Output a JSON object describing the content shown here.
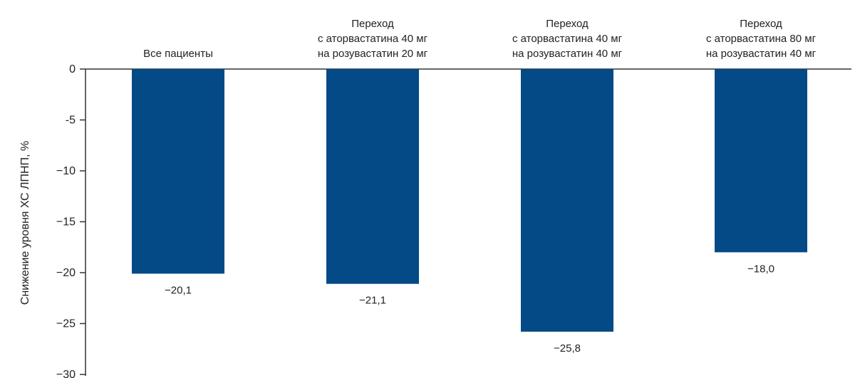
{
  "chart_data": {
    "type": "bar",
    "title": "",
    "xlabel": "",
    "ylabel": "Снижение уровня ХС ЛПНП, %",
    "ylim": [
      -30,
      0
    ],
    "yticks": [
      0,
      -5,
      -10,
      -15,
      -20,
      -25,
      -30
    ],
    "ytick_labels": [
      "0",
      "-5",
      "−10",
      "−15",
      "−20",
      "−25",
      "−30"
    ],
    "grid": false,
    "bar_color": "#034a86",
    "categories": [
      [
        "Все пациенты"
      ],
      [
        "Переход",
        "с аторвастатина 40 мг",
        "на розувастатин 20 мг"
      ],
      [
        "Переход",
        "с аторвастатина 40 мг",
        "на розувастатин 40 мг"
      ],
      [
        "Переход",
        "с аторвастатина 80 мг",
        "на розувастатин 40 мг"
      ]
    ],
    "values": [
      -20.1,
      -21.1,
      -25.8,
      -18.0
    ],
    "value_labels": [
      "−20,1",
      "−21,1",
      "−25,8",
      "−18,0"
    ]
  }
}
